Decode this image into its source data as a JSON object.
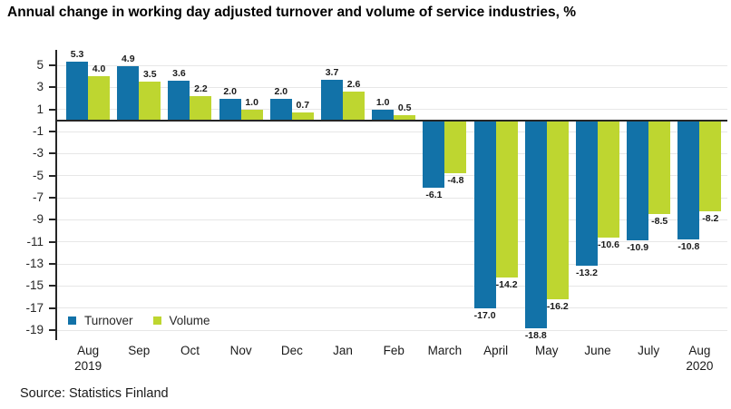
{
  "title": "Annual change in working day adjusted turnover and volume of service industries, %",
  "source": "Source: Statistics Finland",
  "legend": {
    "items": [
      {
        "label": "Turnover",
        "color": "#1272a8"
      },
      {
        "label": "Volume",
        "color": "#bed630"
      }
    ]
  },
  "colors": {
    "turnover": "#1272a8",
    "volume": "#bed630",
    "gridline": "#e7e7e7",
    "axis": "#262626"
  },
  "chart_data": {
    "type": "bar",
    "title": "Annual change in working day adjusted turnover and volume of service industries, %",
    "xlabel": "",
    "ylabel": "%",
    "categories": [
      [
        "Aug",
        "2019"
      ],
      [
        "Sep"
      ],
      [
        "Oct"
      ],
      [
        "Nov"
      ],
      [
        "Dec"
      ],
      [
        "Jan"
      ],
      [
        "Feb"
      ],
      [
        "March"
      ],
      [
        "April"
      ],
      [
        "May"
      ],
      [
        "June"
      ],
      [
        "July"
      ],
      [
        "Aug",
        "2020"
      ]
    ],
    "series": [
      {
        "name": "Turnover",
        "color": "#1272a8",
        "values": [
          5.3,
          4.9,
          3.6,
          2.0,
          2.0,
          3.7,
          1.0,
          -6.1,
          -17.0,
          -18.8,
          -13.2,
          -10.9,
          -10.8
        ]
      },
      {
        "name": "Volume",
        "color": "#bed630",
        "values": [
          4.0,
          3.5,
          2.2,
          1.0,
          0.7,
          2.6,
          0.5,
          -4.8,
          -14.2,
          -16.2,
          -10.6,
          -8.5,
          -8.2
        ]
      }
    ],
    "yticks": [
      5,
      3,
      1,
      -1,
      -3,
      -5,
      -7,
      -9,
      -11,
      -13,
      -15,
      -17,
      -19
    ],
    "ylim": [
      -19.9,
      6.4
    ],
    "grid": true,
    "legend_position": "bottom-left-inside",
    "value_labels": true,
    "source": "Source: Statistics Finland"
  }
}
